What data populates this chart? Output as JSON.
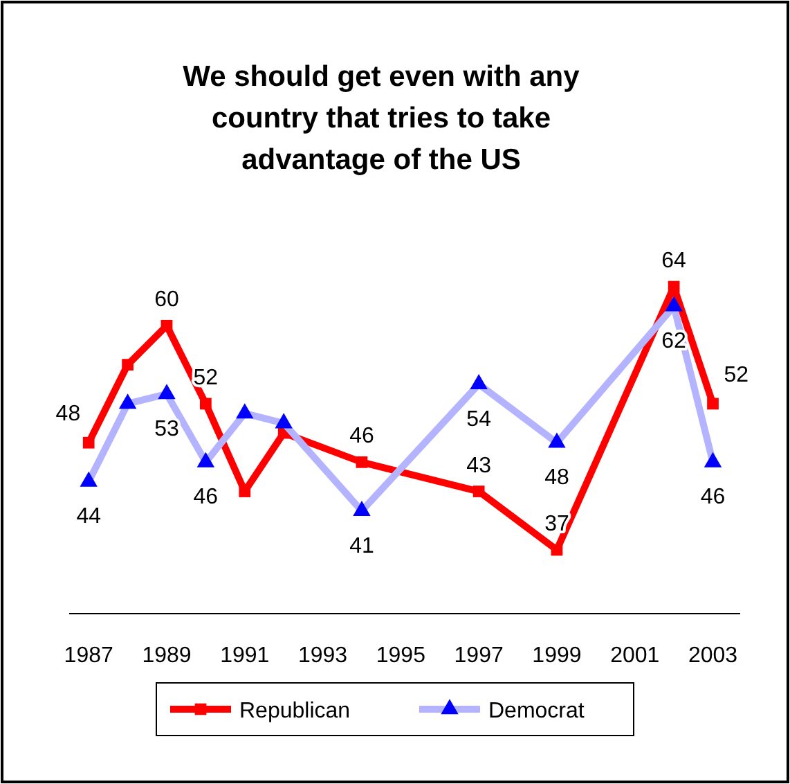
{
  "chart_data": {
    "type": "line",
    "title": "We should get even with any country that tries to take advantage of the US",
    "x": [
      1987,
      1988,
      1989,
      1990,
      1991,
      1992,
      1994,
      1997,
      1999,
      2002,
      2003
    ],
    "xlim": [
      1986.5,
      2003.7
    ],
    "xticks": [
      1987,
      1989,
      1991,
      1993,
      1995,
      1997,
      1999,
      2001,
      2003
    ],
    "tick_labels": "x",
    "legend": "bottom",
    "line_style": "solid",
    "series": [
      {
        "name": "Republican",
        "color": "#ff0000",
        "marker": "square",
        "values": [
          48,
          56,
          60,
          52,
          43,
          49,
          46,
          43,
          37,
          64,
          52
        ],
        "value_labels": [
          "48",
          null,
          "60",
          "52",
          null,
          null,
          "46",
          "43",
          "37",
          "64",
          "52"
        ]
      },
      {
        "name": "Democrat",
        "color": "#b3b3ff",
        "marker": "triangle",
        "values": [
          44,
          52,
          53,
          46,
          51,
          50,
          41,
          54,
          48,
          62,
          46
        ],
        "value_labels": [
          "44",
          null,
          "53",
          "46",
          null,
          null,
          "41",
          "54",
          "48",
          "62",
          "46"
        ]
      }
    ]
  }
}
